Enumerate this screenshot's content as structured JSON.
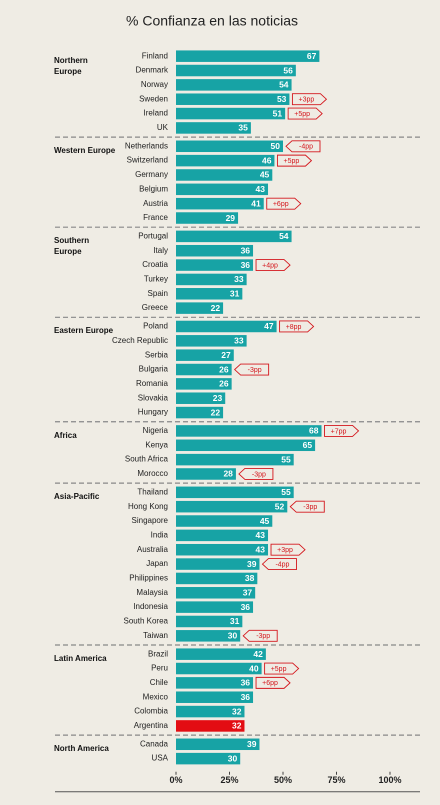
{
  "chart_data": {
    "type": "bar",
    "title": "% Confianza en las noticias",
    "color": "#17a3a5",
    "change_color": "#d4161c",
    "xlim": [
      0,
      100
    ],
    "xticks": [
      {
        "value": 0,
        "label": "0%"
      },
      {
        "value": 25,
        "label": "25%"
      },
      {
        "value": 50,
        "label": "50%"
      },
      {
        "value": 75,
        "label": "75%"
      },
      {
        "value": 100,
        "label": "100%"
      }
    ],
    "groups": [
      {
        "name": "Northern Europe",
        "categories": [
          "Finland",
          "Denmark",
          "Norway",
          "Sweden",
          "Ireland",
          "UK"
        ],
        "values": [
          67,
          56,
          54,
          53,
          51,
          35
        ],
        "changes": [
          null,
          null,
          null,
          "+3pp",
          "+5pp",
          null
        ]
      },
      {
        "name": "Western Europe",
        "categories": [
          "Netherlands",
          "Switzerland",
          "Germany",
          "Belgium",
          "Austria",
          "France"
        ],
        "values": [
          50,
          46,
          45,
          43,
          41,
          29
        ],
        "changes": [
          "-4pp",
          "+5pp",
          null,
          null,
          "+6pp",
          null
        ]
      },
      {
        "name": "Southern Europe",
        "categories": [
          "Portugal",
          "Italy",
          "Croatia",
          "Turkey",
          "Spain",
          "Greece"
        ],
        "values": [
          54,
          36,
          36,
          33,
          31,
          22
        ],
        "changes": [
          null,
          null,
          "+4pp",
          null,
          null,
          null
        ]
      },
      {
        "name": "Eastern Europe",
        "categories": [
          "Poland",
          "Czech Republic",
          "Serbia",
          "Bulgaria",
          "Romania",
          "Slovakia",
          "Hungary"
        ],
        "values": [
          47,
          33,
          27,
          26,
          26,
          23,
          22
        ],
        "changes": [
          "+8pp",
          null,
          null,
          "-3pp",
          null,
          null,
          null
        ]
      },
      {
        "name": "Africa",
        "categories": [
          "Nigeria",
          "Kenya",
          "South Africa",
          "Morocco"
        ],
        "values": [
          68,
          65,
          55,
          28
        ],
        "changes": [
          "+7pp",
          null,
          null,
          "-3pp"
        ]
      },
      {
        "name": "Asia-Pacific",
        "categories": [
          "Thailand",
          "Hong Kong",
          "Singapore",
          "India",
          "Australia",
          "Japan",
          "Philippines",
          "Malaysia",
          "Indonesia",
          "South Korea",
          "Taiwan"
        ],
        "values": [
          55,
          52,
          45,
          43,
          43,
          39,
          38,
          37,
          36,
          31,
          30
        ],
        "changes": [
          null,
          "-3pp",
          null,
          null,
          "+3pp",
          "-4pp",
          null,
          null,
          null,
          null,
          "-3pp"
        ]
      },
      {
        "name": "Latin America",
        "categories": [
          "Brazil",
          "Peru",
          "Chile",
          "Mexico",
          "Colombia",
          "Argentina"
        ],
        "values": [
          42,
          40,
          36,
          36,
          32,
          32
        ],
        "changes": [
          null,
          "+5pp",
          "+6pp",
          null,
          null,
          null
        ],
        "colors": [
          "#17a3a5",
          "#17a3a5",
          "#17a3a5",
          "#17a3a5",
          "#17a3a5",
          "#e30d13"
        ]
      },
      {
        "name": "North America",
        "categories": [
          "Canada",
          "USA"
        ],
        "values": [
          39,
          30
        ],
        "changes": [
          null,
          null
        ]
      }
    ]
  }
}
